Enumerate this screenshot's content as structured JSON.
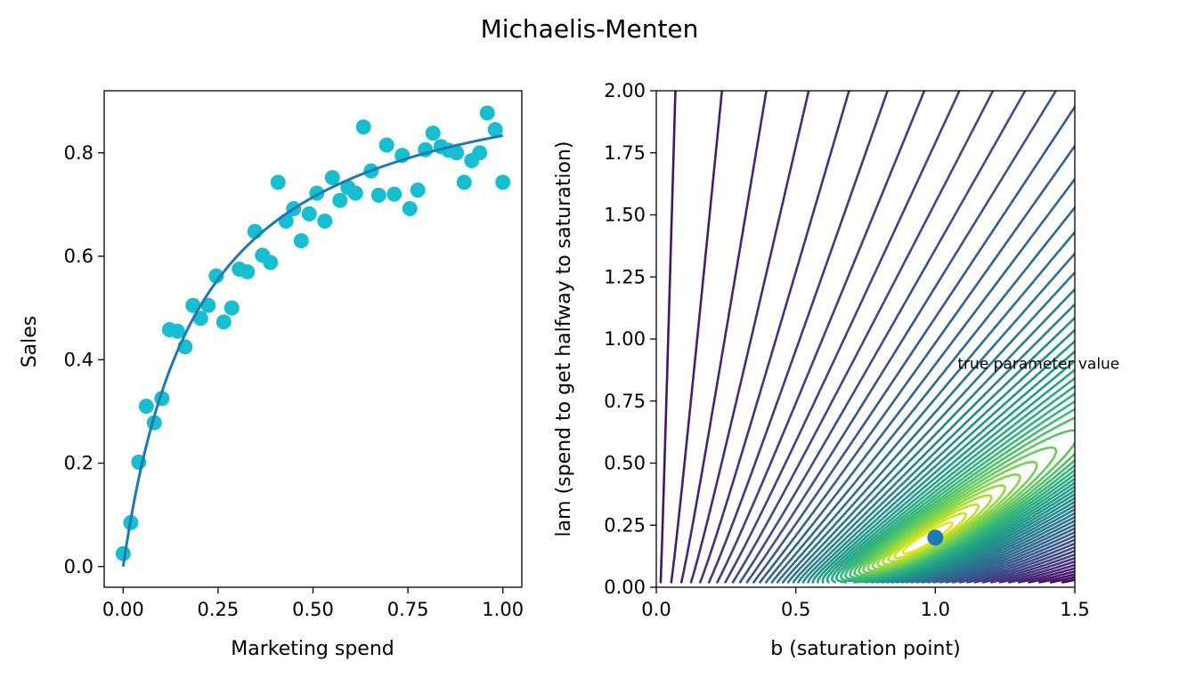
{
  "figure": {
    "title": "Michaelis-Menten"
  },
  "chart_data": [
    {
      "type": "scatter",
      "xlabel": "Marketing spend",
      "ylabel": "Sales",
      "xlim": [
        -0.05,
        1.05
      ],
      "ylim": [
        -0.04,
        0.92
      ],
      "xticks": [
        0.0,
        0.25,
        0.5,
        0.75,
        1.0
      ],
      "xtick_labels": [
        "0.00",
        "0.25",
        "0.50",
        "0.75",
        "1.00"
      ],
      "yticks": [
        0.0,
        0.2,
        0.4,
        0.6,
        0.8
      ],
      "ytick_labels": [
        "0.0",
        "0.2",
        "0.4",
        "0.6",
        "0.8"
      ],
      "grid": false,
      "series": [
        {
          "kind": "points",
          "color": "#17becf",
          "x": [
            0.0,
            0.02,
            0.041,
            0.061,
            0.082,
            0.102,
            0.122,
            0.143,
            0.163,
            0.184,
            0.204,
            0.224,
            0.245,
            0.265,
            0.286,
            0.306,
            0.327,
            0.347,
            0.367,
            0.388,
            0.408,
            0.429,
            0.449,
            0.469,
            0.49,
            0.51,
            0.531,
            0.551,
            0.571,
            0.592,
            0.612,
            0.633,
            0.653,
            0.673,
            0.694,
            0.714,
            0.735,
            0.755,
            0.776,
            0.796,
            0.816,
            0.837,
            0.857,
            0.878,
            0.898,
            0.918,
            0.939,
            0.959,
            0.98,
            1.0
          ],
          "y": [
            0.025,
            0.085,
            0.202,
            0.31,
            0.278,
            0.325,
            0.458,
            0.455,
            0.425,
            0.505,
            0.48,
            0.505,
            0.562,
            0.473,
            0.5,
            0.575,
            0.57,
            0.648,
            0.602,
            0.588,
            0.743,
            0.668,
            0.692,
            0.63,
            0.682,
            0.722,
            0.668,
            0.752,
            0.708,
            0.733,
            0.722,
            0.85,
            0.765,
            0.718,
            0.815,
            0.72,
            0.795,
            0.692,
            0.728,
            0.806,
            0.838,
            0.812,
            0.805,
            0.8,
            0.743,
            0.785,
            0.8,
            0.877,
            0.845,
            0.743
          ]
        },
        {
          "kind": "line",
          "color": "#1f77b4",
          "function": "b*x/(lam+x)",
          "b": 1.0,
          "lam": 0.2
        }
      ]
    },
    {
      "type": "contour",
      "xlabel": "b (saturation point)",
      "ylabel": "lam (spend to get halfway to saturation)",
      "xlim": [
        0.0,
        1.5
      ],
      "ylim": [
        0.0,
        2.0
      ],
      "xticks": [
        0.0,
        0.5,
        1.0,
        1.5
      ],
      "xtick_labels": [
        "0.0",
        "0.5",
        "1.0",
        "1.5"
      ],
      "yticks": [
        0.0,
        0.25,
        0.5,
        0.75,
        1.0,
        1.25,
        1.5,
        1.75,
        2.0
      ],
      "ytick_labels": [
        "0.00",
        "0.25",
        "0.50",
        "0.75",
        "1.00",
        "1.25",
        "1.50",
        "1.75",
        "2.00"
      ],
      "colormap": "viridis",
      "true_point": {
        "b": 1.0,
        "lam": 0.2,
        "color": "#1f77b4"
      },
      "annotation": {
        "text": "true parameter value",
        "b": 1.08,
        "lam": 0.88
      }
    }
  ]
}
